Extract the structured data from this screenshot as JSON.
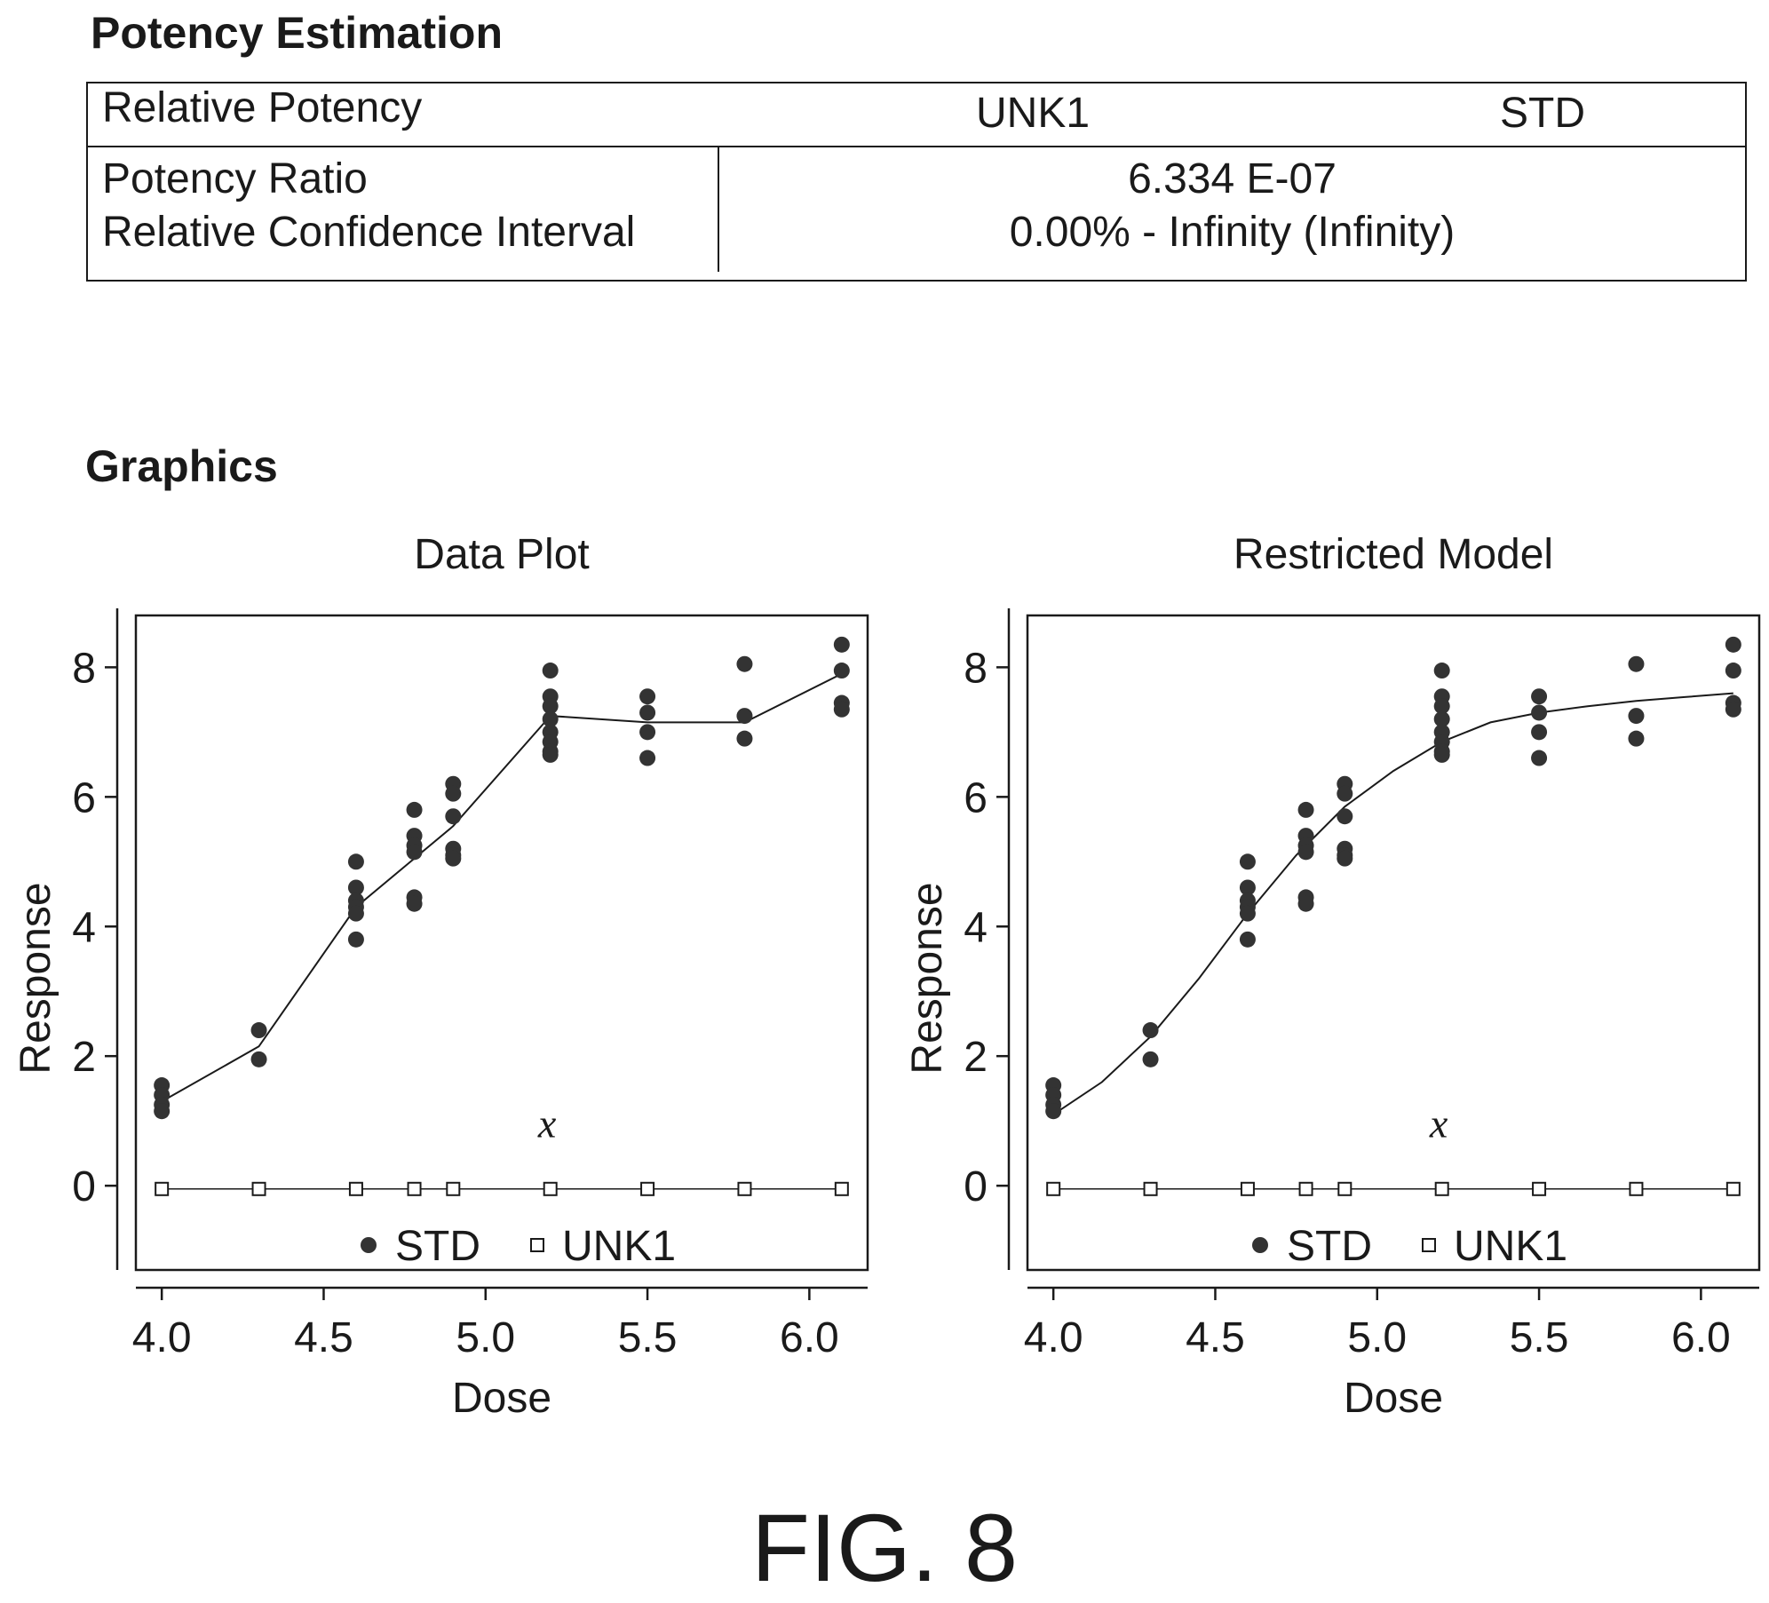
{
  "potency": {
    "title": "Potency Estimation",
    "header": {
      "label": "Relative Potency",
      "col1": "UNK1",
      "col2": "STD"
    },
    "rows": [
      {
        "label": "Potency Ratio",
        "value": "6.334 E-07"
      },
      {
        "label": "Relative Confidence Interval",
        "value": "0.00% - Infinity (Infinity)"
      }
    ]
  },
  "graphics": {
    "title": "Graphics"
  },
  "figure_label": "FIG. 8",
  "chart_data": [
    {
      "type": "scatter",
      "title": "Data Plot",
      "xlabel": "Dose",
      "ylabel": "Response",
      "xlim": [
        3.92,
        6.18
      ],
      "ylim": [
        -1.3,
        8.8
      ],
      "xticks": [
        "4.0",
        "4.5",
        "5.0",
        "5.5",
        "6.0"
      ],
      "yticks": [
        "0",
        "2",
        "4",
        "6",
        "8"
      ],
      "annotation": "x",
      "legend": [
        {
          "name": "STD",
          "marker": "filled-circle"
        },
        {
          "name": "UNK1",
          "marker": "open-square"
        }
      ],
      "legend_placement": "bottom",
      "std_points": {
        "x": [
          4.0,
          4.0,
          4.0,
          4.0,
          4.3,
          4.3,
          4.6,
          4.6,
          4.6,
          4.6,
          4.6,
          4.6,
          4.78,
          4.78,
          4.78,
          4.78,
          4.78,
          4.78,
          4.9,
          4.9,
          4.9,
          4.9,
          4.9,
          4.9,
          5.2,
          5.2,
          5.2,
          5.2,
          5.2,
          5.2,
          5.2,
          5.2,
          5.5,
          5.5,
          5.5,
          5.5,
          5.8,
          5.8,
          5.8,
          6.1,
          6.1,
          6.1,
          6.1
        ],
        "y": [
          1.55,
          1.4,
          1.25,
          1.15,
          2.4,
          1.95,
          5.0,
          4.6,
          4.4,
          4.3,
          4.2,
          3.8,
          5.8,
          5.4,
          5.25,
          5.15,
          4.45,
          4.35,
          6.2,
          6.05,
          5.7,
          5.2,
          5.1,
          5.05,
          7.95,
          7.55,
          7.4,
          7.2,
          7.0,
          6.85,
          6.7,
          6.65,
          7.55,
          7.3,
          7.0,
          6.6,
          8.05,
          7.25,
          6.9,
          8.35,
          7.95,
          7.45,
          7.35
        ]
      },
      "std_fit": {
        "x": [
          4.0,
          4.3,
          4.6,
          4.78,
          4.9,
          5.2,
          5.5,
          5.8,
          6.1
        ],
        "y": [
          1.3,
          2.15,
          4.3,
          5.05,
          5.55,
          7.25,
          7.15,
          7.15,
          7.9
        ]
      },
      "unk1_points": {
        "x": [
          4.0,
          4.3,
          4.6,
          4.78,
          4.9,
          5.2,
          5.5,
          5.8,
          6.1
        ],
        "y": [
          -0.05,
          -0.05,
          -0.05,
          -0.05,
          -0.05,
          -0.05,
          -0.05,
          -0.05,
          -0.05
        ]
      }
    },
    {
      "type": "scatter",
      "title": "Restricted Model",
      "xlabel": "Dose",
      "ylabel": "Response",
      "xlim": [
        3.92,
        6.18
      ],
      "ylim": [
        -1.3,
        8.8
      ],
      "xticks": [
        "4.0",
        "4.5",
        "5.0",
        "5.5",
        "6.0"
      ],
      "yticks": [
        "0",
        "2",
        "4",
        "6",
        "8"
      ],
      "annotation": "x",
      "legend": [
        {
          "name": "STD",
          "marker": "filled-circle"
        },
        {
          "name": "UNK1",
          "marker": "open-square"
        }
      ],
      "legend_placement": "bottom",
      "std_points": {
        "x": [
          4.0,
          4.0,
          4.0,
          4.0,
          4.3,
          4.3,
          4.6,
          4.6,
          4.6,
          4.6,
          4.6,
          4.6,
          4.78,
          4.78,
          4.78,
          4.78,
          4.78,
          4.78,
          4.9,
          4.9,
          4.9,
          4.9,
          4.9,
          4.9,
          5.2,
          5.2,
          5.2,
          5.2,
          5.2,
          5.2,
          5.2,
          5.2,
          5.5,
          5.5,
          5.5,
          5.5,
          5.8,
          5.8,
          5.8,
          6.1,
          6.1,
          6.1,
          6.1
        ],
        "y": [
          1.55,
          1.4,
          1.25,
          1.15,
          2.4,
          1.95,
          5.0,
          4.6,
          4.4,
          4.3,
          4.2,
          3.8,
          5.8,
          5.4,
          5.25,
          5.15,
          4.45,
          4.35,
          6.2,
          6.05,
          5.7,
          5.2,
          5.1,
          5.05,
          7.95,
          7.55,
          7.4,
          7.2,
          7.0,
          6.85,
          6.7,
          6.65,
          7.55,
          7.3,
          7.0,
          6.6,
          8.05,
          7.25,
          6.9,
          8.35,
          7.95,
          7.45,
          7.35
        ]
      },
      "std_fit": {
        "x": [
          4.0,
          4.15,
          4.3,
          4.45,
          4.6,
          4.75,
          4.9,
          5.05,
          5.2,
          5.35,
          5.5,
          5.65,
          5.8,
          5.95,
          6.1
        ],
        "y": [
          1.1,
          1.6,
          2.3,
          3.2,
          4.2,
          5.1,
          5.85,
          6.4,
          6.85,
          7.15,
          7.3,
          7.4,
          7.48,
          7.54,
          7.6
        ]
      },
      "unk1_points": {
        "x": [
          4.0,
          4.3,
          4.6,
          4.78,
          4.9,
          5.2,
          5.5,
          5.8,
          6.1
        ],
        "y": [
          -0.05,
          -0.05,
          -0.05,
          -0.05,
          -0.05,
          -0.05,
          -0.05,
          -0.05,
          -0.05
        ]
      }
    }
  ]
}
